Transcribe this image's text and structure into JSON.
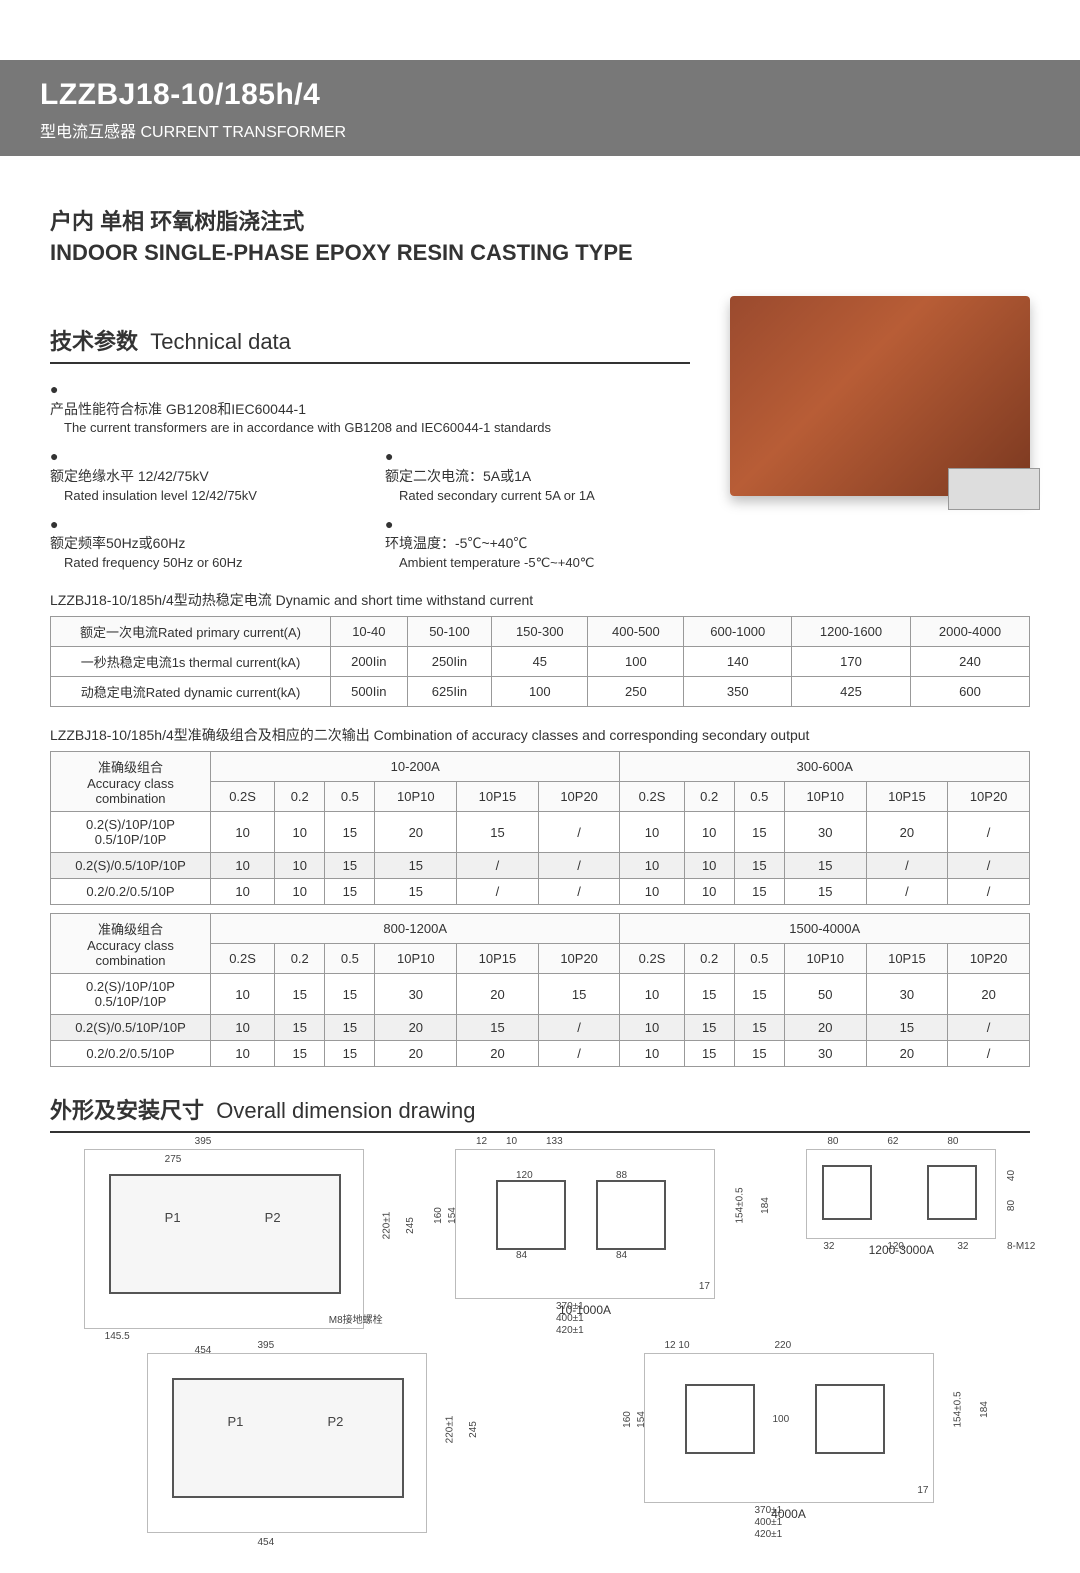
{
  "header": {
    "model": "LZZBJ18-10/185h/4",
    "subtitle_zh": "型电流互感器",
    "subtitle_en": "CURRENT TRANSFORMER"
  },
  "intro": {
    "title_zh": "户内 单相 环氧树脂浇注式",
    "title_en": "INDOOR SINGLE-PHASE EPOXY RESIN CASTING TYPE"
  },
  "tech_data_title_zh": "技术参数",
  "tech_data_title_en": "Technical data",
  "bullets": [
    {
      "zh": "产品性能符合标准 GB1208和IEC60044-1",
      "en": "The current transformers are in accordance with GB1208 and IEC60044-1 standards",
      "full": true
    },
    {
      "zh": "额定绝缘水平 12/42/75kV",
      "en": "Rated insulation level 12/42/75kV"
    },
    {
      "zh": "额定二次电流：5A或1A",
      "en": "Rated secondary current 5A or 1A"
    },
    {
      "zh": "额定频率50Hz或60Hz",
      "en": "Rated frequency 50Hz or 60Hz"
    },
    {
      "zh": "环境温度：-5℃~+40℃",
      "en": "Ambient temperature -5℃~+40℃"
    }
  ],
  "table1": {
    "caption": "LZZBJ18-10/185h/4型动热稳定电流 Dynamic and short time withstand current",
    "headers": [
      "额定一次电流Rated primary current(A)",
      "10-40",
      "50-100",
      "150-300",
      "400-500",
      "600-1000",
      "1200-1600",
      "2000-4000"
    ],
    "rows": [
      {
        "label": "一秒热稳定电流1s thermal current(kA)",
        "cells": [
          "200Iin",
          "250Iin",
          "45",
          "100",
          "140",
          "170",
          "240"
        ]
      },
      {
        "label": "动稳定电流Rated dynamic current(kA)",
        "cells": [
          "500Iin",
          "625Iin",
          "100",
          "250",
          "350",
          "425",
          "600"
        ]
      }
    ]
  },
  "table2": {
    "caption": "LZZBJ18-10/185h/4型准确级组合及相应的二次输出 Combination of accuracy classes and corresponding secondary output",
    "group_headers": [
      {
        "label_zh": "准确级组合",
        "label_en": "Accuracy class combination",
        "range": "10-200A"
      },
      {
        "range": "300-600A"
      }
    ],
    "sub_cols": [
      "0.2S",
      "0.2",
      "0.5",
      "10P10",
      "10P15",
      "10P20"
    ],
    "rows_a": [
      {
        "label": "0.2(S)/10P/10P\n0.5/10P/10P",
        "a": [
          "10",
          "10",
          "15",
          "20",
          "15",
          "/"
        ],
        "b": [
          "10",
          "10",
          "15",
          "30",
          "20",
          "/"
        ]
      },
      {
        "label": "0.2(S)/0.5/10P/10P",
        "a": [
          "10",
          "10",
          "15",
          "15",
          "/",
          "/"
        ],
        "b": [
          "10",
          "10",
          "15",
          "15",
          "/",
          "/"
        ],
        "stripe": true
      },
      {
        "label": "0.2/0.2/0.5/10P",
        "a": [
          "10",
          "10",
          "15",
          "15",
          "/",
          "/"
        ],
        "b": [
          "10",
          "10",
          "15",
          "15",
          "/",
          "/"
        ]
      }
    ],
    "group_headers2": [
      {
        "label_zh": "准确级组合",
        "label_en": "Accuracy class combination",
        "range": "800-1200A"
      },
      {
        "range": "1500-4000A"
      }
    ],
    "rows_b": [
      {
        "label": "0.2(S)/10P/10P\n0.5/10P/10P",
        "a": [
          "10",
          "15",
          "15",
          "30",
          "20",
          "15"
        ],
        "b": [
          "10",
          "15",
          "15",
          "50",
          "30",
          "20"
        ]
      },
      {
        "label": "0.2(S)/0.5/10P/10P",
        "a": [
          "10",
          "15",
          "15",
          "20",
          "15",
          "/"
        ],
        "b": [
          "10",
          "15",
          "15",
          "20",
          "15",
          "/"
        ],
        "stripe": true
      },
      {
        "label": "0.2/0.2/0.5/10P",
        "a": [
          "10",
          "15",
          "15",
          "20",
          "20",
          "/"
        ],
        "b": [
          "10",
          "15",
          "15",
          "30",
          "20",
          "/"
        ]
      }
    ]
  },
  "dim_title_zh": "外形及安装尺寸",
  "dim_title_en": "Overall dimension drawing",
  "drawings": {
    "d1": {
      "w_top": "395",
      "w_sub": "275",
      "P1": "P1",
      "P2": "P2",
      "h1": "220±1",
      "h2": "245",
      "base_l": "145.5",
      "base_w": "454",
      "ground": "M8接地螺栓"
    },
    "d2": {
      "caption": "10-1000A",
      "top_dims": [
        "12",
        "10",
        "133"
      ],
      "side_l": "160",
      "side_l2": "154",
      "inner": [
        "120",
        "84",
        "88",
        "84"
      ],
      "bot": [
        "370±1",
        "400±1",
        "420±1"
      ],
      "r": "17",
      "rh": [
        "154±0.5",
        "184"
      ]
    },
    "d3": {
      "caption": "1200-3000A",
      "top": [
        "80",
        "62",
        "80"
      ],
      "side": [
        "40",
        "80"
      ],
      "bot": [
        "32",
        "120",
        "32"
      ],
      "bolts": "8-M12"
    },
    "d4": {
      "w_top": "395",
      "P1": "P1",
      "P2": "P2",
      "h1": "220±1",
      "h2": "245",
      "base_w": "454"
    },
    "d5": {
      "caption": "4000A",
      "top_dims": [
        "12 10",
        "220"
      ],
      "side_l": "160",
      "side_l2": "154",
      "inner": "100",
      "bot": [
        "370±1",
        "400±1",
        "420±1"
      ],
      "r": "17",
      "rh": [
        "154±0.5",
        "184"
      ]
    }
  }
}
